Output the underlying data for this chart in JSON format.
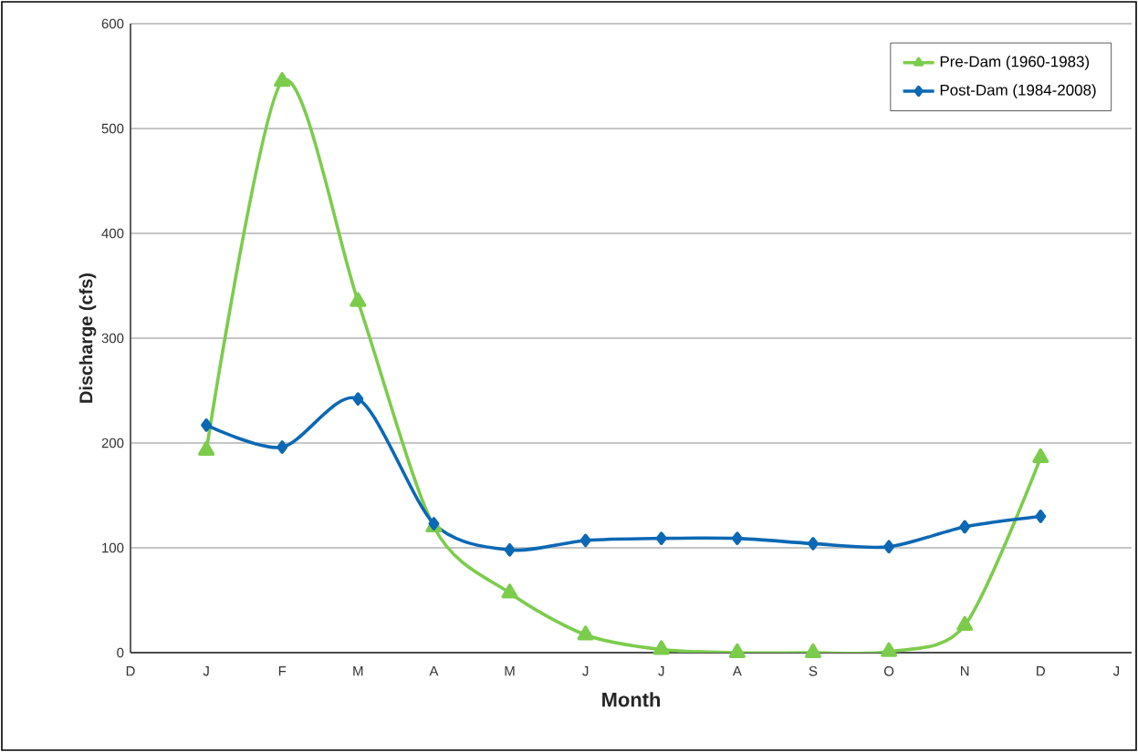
{
  "chart_data": {
    "type": "line",
    "xlabel": "Month",
    "ylabel": "Discharge (cfs)",
    "categories": [
      "D",
      "J",
      "F",
      "M",
      "A",
      "M",
      "J",
      "J",
      "A",
      "S",
      "O",
      "N",
      "D",
      "J"
    ],
    "series": [
      {
        "name": "Pre-Dam (1960-1983)",
        "color": "#7ccc4c",
        "marker": "triangle",
        "values": [
          null,
          193,
          545,
          335,
          120,
          57,
          17,
          3,
          0,
          0,
          1,
          26,
          186,
          null
        ]
      },
      {
        "name": "Post-Dam (1984-2008)",
        "color": "#0b68b4",
        "marker": "diamond",
        "values": [
          null,
          217,
          196,
          242,
          123,
          98,
          107,
          109,
          109,
          104,
          101,
          120,
          130,
          null
        ]
      }
    ],
    "ylim": [
      0,
      600
    ],
    "yticks": [
      0,
      100,
      200,
      300,
      400,
      500,
      600
    ],
    "grid": "y",
    "legend": "top right",
    "line_style": "solid"
  }
}
